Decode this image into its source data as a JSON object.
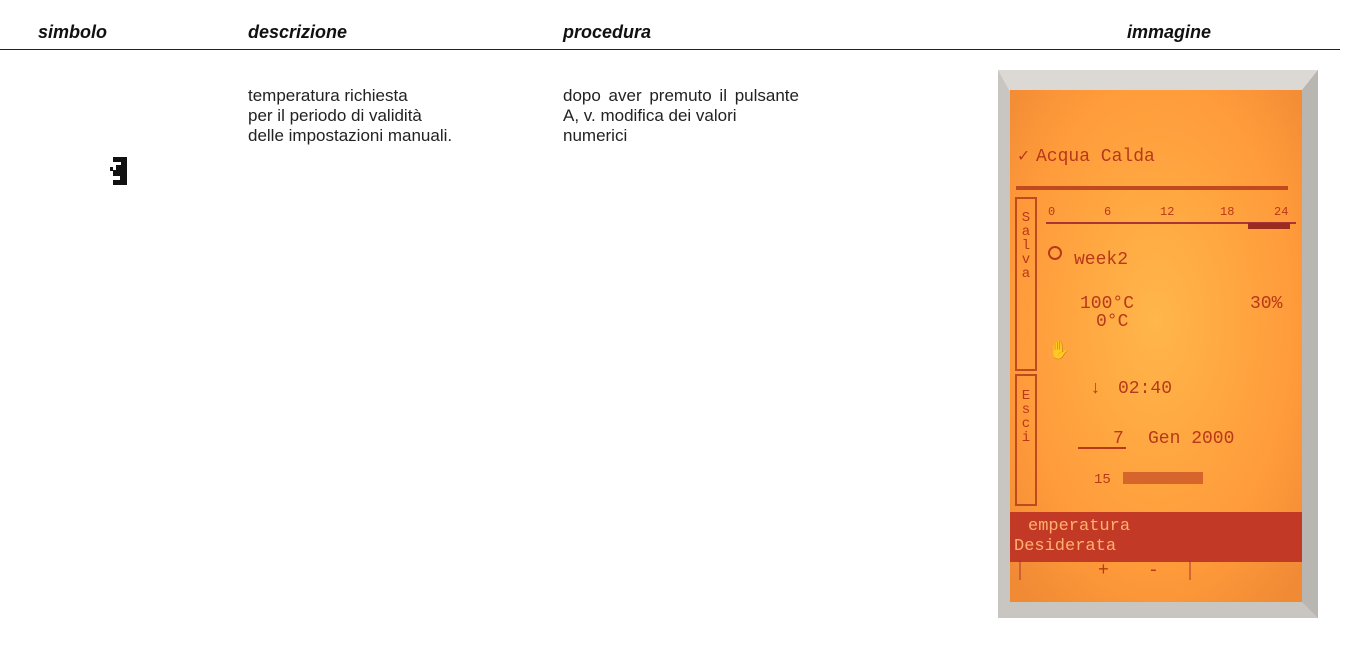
{
  "table": {
    "headers": [
      "simbolo",
      "descrizione",
      "procedura",
      "immagine"
    ],
    "rows": [
      {
        "descrizione": [
          "temperatura richiesta",
          "per il periodo di validità",
          "delle impostazioni manuali."
        ],
        "procedura": [
          "dopo aver premuto il pulsante",
          "A, v. modifica dei valori",
          "numerici"
        ]
      }
    ]
  },
  "display": {
    "title": "Acqua Calda",
    "scale": [
      "0",
      "6",
      "12",
      "18",
      "24"
    ],
    "program": "week2",
    "temperature": "100°C",
    "percent": "30%",
    "off_temperature": "0°C",
    "time": "02:40",
    "day": "7",
    "date": "Gen 2000",
    "week": "15",
    "side_top": "Salva",
    "side_bottom": "Esci",
    "bar": [
      "emperatura",
      "Desiderata"
    ],
    "buttons": [
      "+",
      "-"
    ]
  }
}
